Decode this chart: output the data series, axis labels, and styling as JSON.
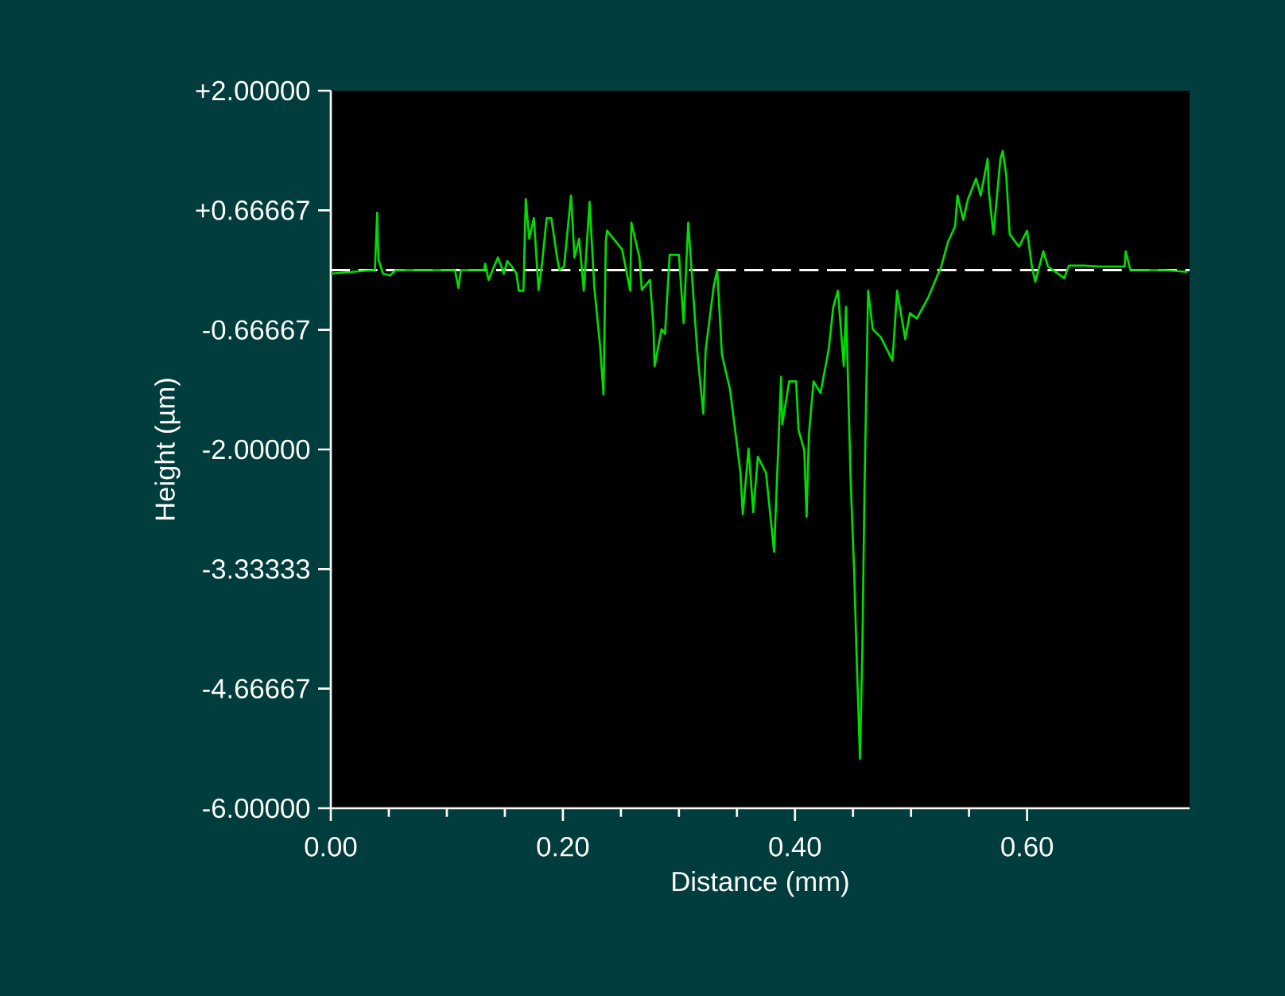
{
  "chart_data": {
    "type": "line",
    "xlabel": "Distance (mm)",
    "ylabel": "Height (µm)",
    "xlim": [
      0,
      0.74
    ],
    "ylim": [
      -6,
      2
    ],
    "xticks": [
      {
        "value": 0,
        "label": "0.00"
      },
      {
        "value": 0.2,
        "label": "0.20"
      },
      {
        "value": 0.4,
        "label": "0.40"
      },
      {
        "value": 0.6,
        "label": "0.60"
      }
    ],
    "yticks": [
      {
        "value": 2,
        "label": "+2.00000"
      },
      {
        "value": 0.66667,
        "label": "+0.66667"
      },
      {
        "value": -0.66667,
        "label": "-0.66667"
      },
      {
        "value": -2,
        "label": "-2.00000"
      },
      {
        "value": -3.33333,
        "label": "-3.33333"
      },
      {
        "value": -4.66667,
        "label": "-4.66667"
      },
      {
        "value": -6,
        "label": "-6.00000"
      }
    ],
    "grid": false,
    "marker": "none",
    "line_style": "solid",
    "ref_lines": [
      {
        "axis": "y",
        "value": 0,
        "color": "#ffffff",
        "line_style": "dashed"
      }
    ],
    "series": [
      {
        "color": "#00dd00",
        "x": [
          0,
          0.018,
          0.038,
          0.04,
          0.041,
          0.045,
          0.051,
          0.056,
          0.093,
          0.107,
          0.11,
          0.112,
          0.132,
          0.133,
          0.136,
          0.14,
          0.144,
          0.147,
          0.149,
          0.152,
          0.156,
          0.16,
          0.162,
          0.166,
          0.168,
          0.171,
          0.175,
          0.179,
          0.182,
          0.186,
          0.19,
          0.195,
          0.197,
          0.201,
          0.207,
          0.21,
          0.214,
          0.218,
          0.223,
          0.227,
          0.232,
          0.235,
          0.237,
          0.238,
          0.251,
          0.258,
          0.259,
          0.266,
          0.268,
          0.275,
          0.278,
          0.279,
          0.285,
          0.288,
          0.292,
          0.3,
          0.304,
          0.308,
          0.316,
          0.321,
          0.323,
          0.33,
          0.333,
          0.337,
          0.344,
          0.348,
          0.353,
          0.355,
          0.36,
          0.364,
          0.368,
          0.375,
          0.382,
          0.388,
          0.389,
          0.395,
          0.401,
          0.403,
          0.408,
          0.41,
          0.412,
          0.416,
          0.422,
          0.429,
          0.433,
          0.437,
          0.442,
          0.444,
          0.448,
          0.451,
          0.453,
          0.456,
          0.458,
          0.46,
          0.462,
          0.463,
          0.467,
          0.474,
          0.484,
          0.488,
          0.495,
          0.499,
          0.505,
          0.515,
          0.526,
          0.532,
          0.538,
          0.54,
          0.545,
          0.549,
          0.556,
          0.56,
          0.566,
          0.567,
          0.571,
          0.577,
          0.579,
          0.582,
          0.585,
          0.593,
          0.6,
          0.604,
          0.607,
          0.614,
          0.618,
          0.632,
          0.636,
          0.649,
          0.663,
          0.684,
          0.685,
          0.689,
          0.718,
          0.738
        ],
        "values": [
          -0.04,
          -0.02,
          0.0,
          0.64,
          0.12,
          -0.04,
          -0.06,
          0.0,
          0.0,
          0.0,
          -0.2,
          0.0,
          0.0,
          0.07,
          -0.11,
          0.02,
          0.14,
          0.04,
          -0.04,
          0.1,
          0.04,
          -0.04,
          -0.23,
          -0.23,
          0.79,
          0.35,
          0.58,
          -0.22,
          0.07,
          0.58,
          0.58,
          0.14,
          0.0,
          0.04,
          0.83,
          0.14,
          0.35,
          -0.23,
          0.76,
          -0.18,
          -0.84,
          -1.39,
          0.32,
          0.44,
          0.23,
          -0.23,
          0.53,
          0.14,
          -0.22,
          -0.11,
          -0.62,
          -1.07,
          -0.66,
          -0.71,
          0.17,
          0.17,
          -0.59,
          0.53,
          -0.94,
          -1.6,
          -0.89,
          -0.18,
          0.0,
          -0.94,
          -1.33,
          -1.74,
          -2.26,
          -2.72,
          -1.99,
          -2.7,
          -2.08,
          -2.26,
          -3.14,
          -1.19,
          -1.72,
          -1.24,
          -1.24,
          -1.78,
          -2.01,
          -2.75,
          -1.83,
          -1.24,
          -1.37,
          -0.89,
          -0.41,
          -0.23,
          -1.07,
          -0.41,
          -2.36,
          -3.37,
          -4.26,
          -5.45,
          -4.26,
          -2.36,
          -0.94,
          -0.23,
          -0.66,
          -0.75,
          -1.01,
          -0.23,
          -0.77,
          -0.48,
          -0.54,
          -0.3,
          0.04,
          0.32,
          0.49,
          0.83,
          0.56,
          0.79,
          1.02,
          0.83,
          1.24,
          0.88,
          0.4,
          1.24,
          1.33,
          1.06,
          0.4,
          0.26,
          0.44,
          0.05,
          -0.13,
          0.21,
          0.04,
          -0.09,
          0.05,
          0.05,
          0.04,
          0.04,
          0.21,
          0.0,
          0.0,
          -0.02
        ]
      }
    ]
  }
}
